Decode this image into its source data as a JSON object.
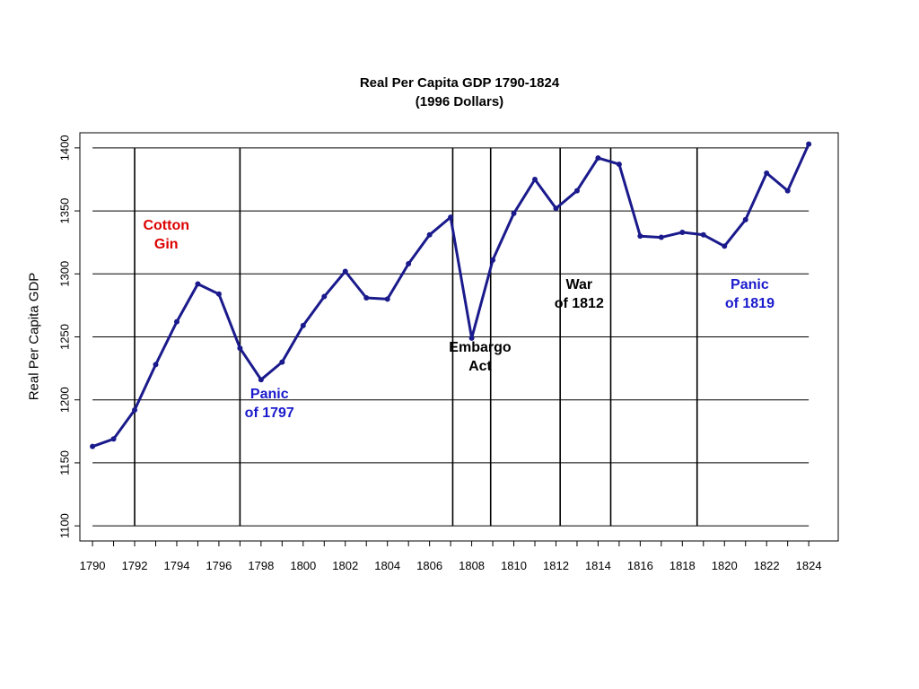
{
  "chart_data": {
    "type": "line",
    "title": "Real Per Capita GDP 1790-1824",
    "subtitle": "(1996 Dollars)",
    "xlabel": "",
    "ylabel": "Real Per Capita GDP",
    "xlim": [
      1789.4,
      1825.4
    ],
    "ylim": [
      1088,
      1412
    ],
    "x_ticks": [
      "1790",
      "1792",
      "1794",
      "1796",
      "1798",
      "1800",
      "1802",
      "1804",
      "1806",
      "1808",
      "1810",
      "1812",
      "1814",
      "1816",
      "1818",
      "1820",
      "1822",
      "1824"
    ],
    "y_ticks": [
      "1100",
      "1150",
      "1200",
      "1250",
      "1300",
      "1350",
      "1400"
    ],
    "x": [
      1790,
      1791,
      1792,
      1793,
      1794,
      1795,
      1796,
      1797,
      1798,
      1799,
      1800,
      1801,
      1802,
      1803,
      1804,
      1805,
      1806,
      1807,
      1808,
      1809,
      1810,
      1811,
      1812,
      1813,
      1814,
      1815,
      1816,
      1817,
      1818,
      1819,
      1820,
      1821,
      1822,
      1823,
      1824
    ],
    "series": [
      {
        "color": "#1a1a8c",
        "values": [
          1163,
          1169,
          1192,
          1228,
          1262,
          1292,
          1284,
          1241,
          1216,
          1230,
          1259,
          1282,
          1302,
          1281,
          1280,
          1308,
          1331,
          1345,
          1249,
          1311,
          1348,
          1375,
          1352,
          1366,
          1392,
          1387,
          1330,
          1329,
          1333,
          1331,
          1322,
          1343,
          1380,
          1366,
          1403
        ]
      }
    ],
    "event_lines": [
      1792,
      1797,
      1807.1,
      1808.9,
      1812.2,
      1814.6,
      1818.7
    ],
    "annotations": [
      {
        "lines": [
          "Cotton",
          "Gin"
        ],
        "color": "#dd0000",
        "x": 1793.5,
        "y": 1331
      },
      {
        "lines": [
          "Panic",
          "of 1797"
        ],
        "color": "#1a1acc",
        "x": 1798.4,
        "y": 1197
      },
      {
        "lines": [
          "Embargo",
          "Act"
        ],
        "color": "#000000",
        "x": 1808.4,
        "y": 1234
      },
      {
        "lines": [
          "War",
          "of 1812"
        ],
        "color": "#000000",
        "x": 1813.1,
        "y": 1284
      },
      {
        "lines": [
          "Panic",
          "of 1819"
        ],
        "color": "#1a1acc",
        "x": 1821.2,
        "y": 1284
      }
    ],
    "grid": {
      "horizontal": true,
      "vertical": false
    }
  }
}
